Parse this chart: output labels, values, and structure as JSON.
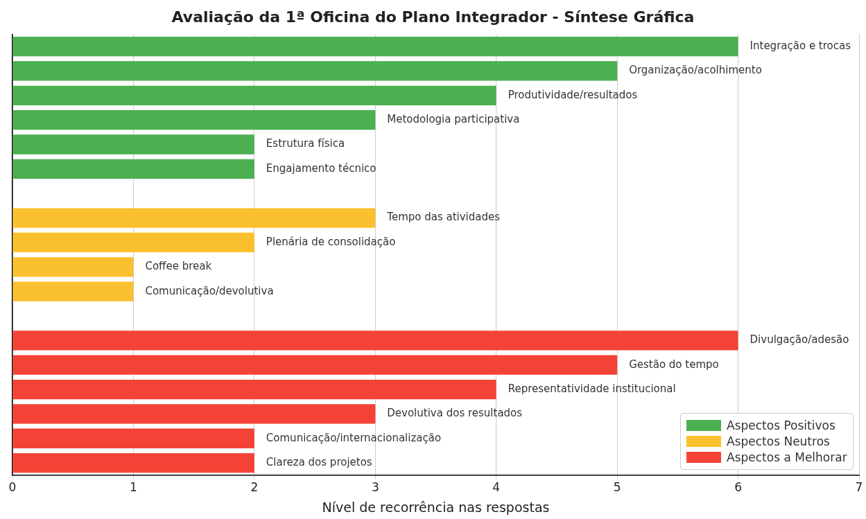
{
  "chart_data": {
    "type": "bar",
    "orientation": "horizontal",
    "stacked": true,
    "title": "Avaliação da 1ª Oficina do Plano Integrador - Síntese Gráfica",
    "xlabel": "Nível de recorrência nas respostas",
    "categories": [
      "Integração e trocas",
      "Organização/acolhimento",
      "Produtividade/resultados",
      "Metodologia participativa",
      "Estrutura física",
      "Engajamento técnico",
      null,
      "Tempo das atividades",
      "Plenária de consolidação",
      "Coffee break",
      "Comunicação/devolutiva",
      null,
      "Divulgação/adesão",
      "Gestão do tempo",
      "Representatividade institucional",
      "Devolutiva dos resultados",
      "Comunicação/internacionalização",
      "Clareza dos projetos"
    ],
    "series": [
      {
        "name": "Aspectos Positivos",
        "color": "#4caf50",
        "values": [
          6,
          5,
          4,
          3,
          2,
          2,
          null,
          null,
          null,
          null,
          null,
          null,
          null,
          null,
          null,
          null,
          null,
          null
        ]
      },
      {
        "name": "Aspectos Neutros",
        "color": "#fbc02d",
        "values": [
          null,
          null,
          null,
          null,
          null,
          null,
          null,
          3,
          2,
          1,
          1,
          null,
          null,
          null,
          null,
          null,
          null,
          null
        ]
      },
      {
        "name": "Aspectos a Melhorar",
        "color": "#f44336",
        "values": [
          null,
          null,
          null,
          null,
          null,
          null,
          null,
          null,
          null,
          null,
          null,
          null,
          6,
          5,
          4,
          3,
          2,
          2
        ]
      }
    ],
    "xlim": [
      0,
      7
    ],
    "xticks": [
      0,
      1,
      2,
      3,
      4,
      5,
      6,
      7
    ],
    "grid": "x",
    "legend": "bottom right",
    "tick_labels": "x"
  }
}
